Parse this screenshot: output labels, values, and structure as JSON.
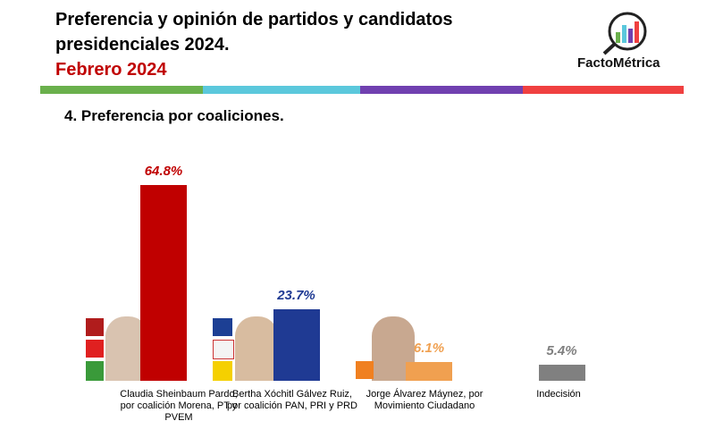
{
  "header": {
    "title": "Preferencia y opinión de partidos y candidatos presidenciales 2024.",
    "date": "Febrero 2024",
    "brand": "FactoMétrica"
  },
  "chart_data": {
    "type": "bar",
    "title": "4. Preferencia por coaliciones.",
    "categories": [
      "Claudia Sheinbaum Pardo, por coalición Morena, PT y PVEM",
      "Bertha Xóchitl Gálvez Ruiz, por coalición PAN, PRI y PRD",
      "Jorge Álvarez Máynez, por Movimiento Ciudadano",
      "Indecisión"
    ],
    "values": [
      64.8,
      23.7,
      6.1,
      5.4
    ],
    "value_labels": [
      "64.8%",
      "23.7%",
      "6.1%",
      "5.4%"
    ],
    "colors": [
      "#c00000",
      "#1f3a93",
      "#f0a050",
      "#808080"
    ],
    "ylim": [
      0,
      70
    ]
  }
}
